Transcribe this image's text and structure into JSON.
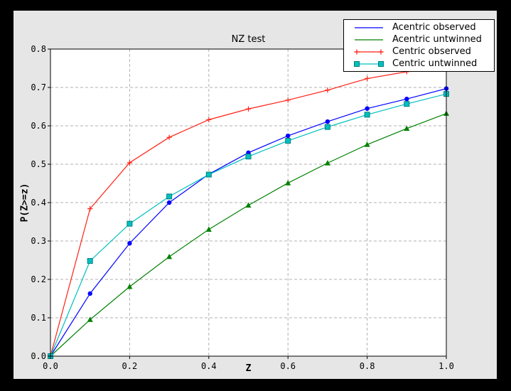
{
  "window": {
    "outer_bg": "#000000",
    "figure_bg": "#e6e6e6",
    "plot_bg": "#ffffff",
    "grid_color": "#b0b0b0",
    "axis_color": "#000000"
  },
  "chart_data": {
    "type": "line",
    "title": "NZ test",
    "xlabel": "Z",
    "ylabel": "P(Z>=z)",
    "xlim": [
      0.0,
      1.0
    ],
    "ylim": [
      0.0,
      0.8
    ],
    "grid": true,
    "legend_position": "upper right",
    "x_ticks": {
      "values": [
        0.0,
        0.2,
        0.4,
        0.6,
        0.8,
        1.0
      ],
      "labels": [
        "0.0",
        "0.2",
        "0.4",
        "0.6",
        "0.8",
        "1.0"
      ]
    },
    "y_ticks": {
      "values": [
        0.0,
        0.1,
        0.2,
        0.3,
        0.4,
        0.5,
        0.6,
        0.7,
        0.8
      ],
      "labels": [
        "0.0",
        "0.1",
        "0.2",
        "0.3",
        "0.4",
        "0.5",
        "0.6",
        "0.7",
        "0.8"
      ]
    },
    "x_grid": [
      0.2,
      0.4,
      0.6,
      0.8
    ],
    "y_grid": [
      0.1,
      0.2,
      0.3,
      0.4,
      0.5,
      0.6,
      0.7
    ],
    "x": [
      0.0,
      0.1,
      0.2,
      0.3,
      0.4,
      0.5,
      0.6,
      0.7,
      0.8,
      0.9,
      1.0
    ],
    "series": [
      {
        "name": "Acentric observed",
        "color": "#0000ff",
        "marker": "circle",
        "marker_edge": "#0000ff",
        "legend_markers": false,
        "values": [
          0.0,
          0.163,
          0.294,
          0.4,
          0.474,
          0.53,
          0.574,
          0.611,
          0.645,
          0.67,
          0.697
        ]
      },
      {
        "name": "Acentric untwinned",
        "color": "#008000",
        "marker": "triangle",
        "marker_edge": "#008000",
        "legend_markers": false,
        "values": [
          0.0,
          0.095,
          0.181,
          0.259,
          0.33,
          0.393,
          0.451,
          0.503,
          0.551,
          0.593,
          0.632
        ]
      },
      {
        "name": "Centric observed",
        "color": "#ff2015",
        "marker": "plus",
        "marker_edge": "#ff2015",
        "legend_markers": true,
        "values": [
          0.0,
          0.384,
          0.504,
          0.57,
          0.616,
          0.644,
          0.667,
          0.693,
          0.723,
          0.741,
          0.757
        ]
      },
      {
        "name": "Centric untwinned",
        "color": "#00bfbf",
        "marker": "square",
        "marker_edge": "#007f7f",
        "legend_markers": true,
        "values": [
          0.0,
          0.248,
          0.345,
          0.416,
          0.473,
          0.52,
          0.561,
          0.597,
          0.629,
          0.657,
          0.683
        ]
      }
    ]
  }
}
